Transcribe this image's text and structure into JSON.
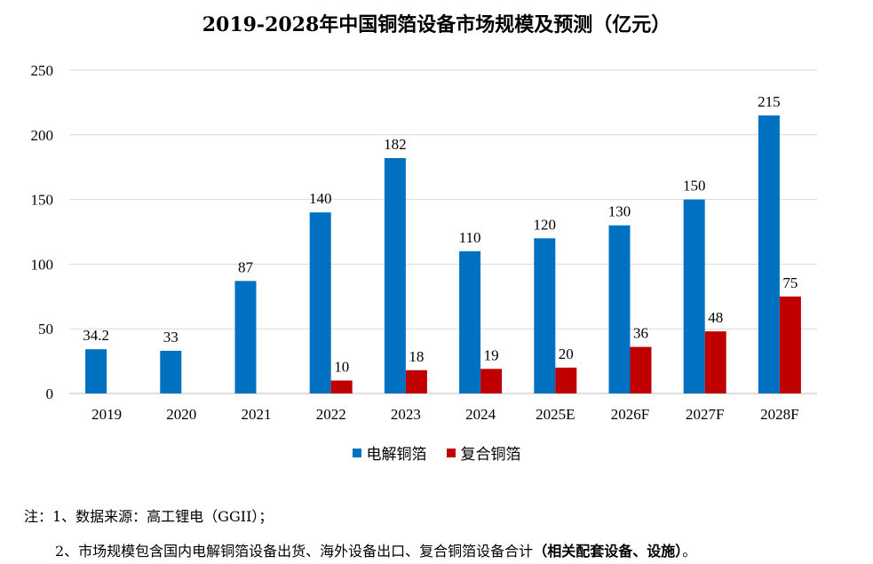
{
  "title": "2019-2028年中国铜箔设备市场规模及预测（亿元）",
  "colors": {
    "series1": "#0070C0",
    "series2": "#C00000",
    "grid": "#D9D9D9"
  },
  "chart_data": {
    "type": "bar",
    "title": "2019-2028年中国铜箔设备市场规模及预测（亿元）",
    "categories": [
      "2019",
      "2020",
      "2021",
      "2022",
      "2023",
      "2024",
      "2025E",
      "2026F",
      "2027F",
      "2028F"
    ],
    "series": [
      {
        "name": "电解铜箔",
        "values": [
          34.2,
          33,
          87,
          140,
          182,
          110,
          120,
          130,
          150,
          215
        ]
      },
      {
        "name": "复合铜箔",
        "values": [
          null,
          null,
          null,
          10,
          18,
          19,
          20,
          36,
          48,
          75
        ]
      }
    ],
    "ylim": [
      0,
      250
    ],
    "yticks": [
      0,
      50,
      100,
      150,
      200,
      250
    ],
    "grid": true,
    "legend": "bottom"
  },
  "legend": {
    "items": [
      "电解铜箔",
      "复合铜箔"
    ]
  },
  "notes": {
    "line1": "注：1、数据来源：高工锂电（GGII）；",
    "line2_main": "2、市场规模包含国内电解铜箔设备出货、海外设备出口、复合铜箔设备合计",
    "line2_bold": "（相关配套设备、设施）",
    "line2_end": "。"
  }
}
